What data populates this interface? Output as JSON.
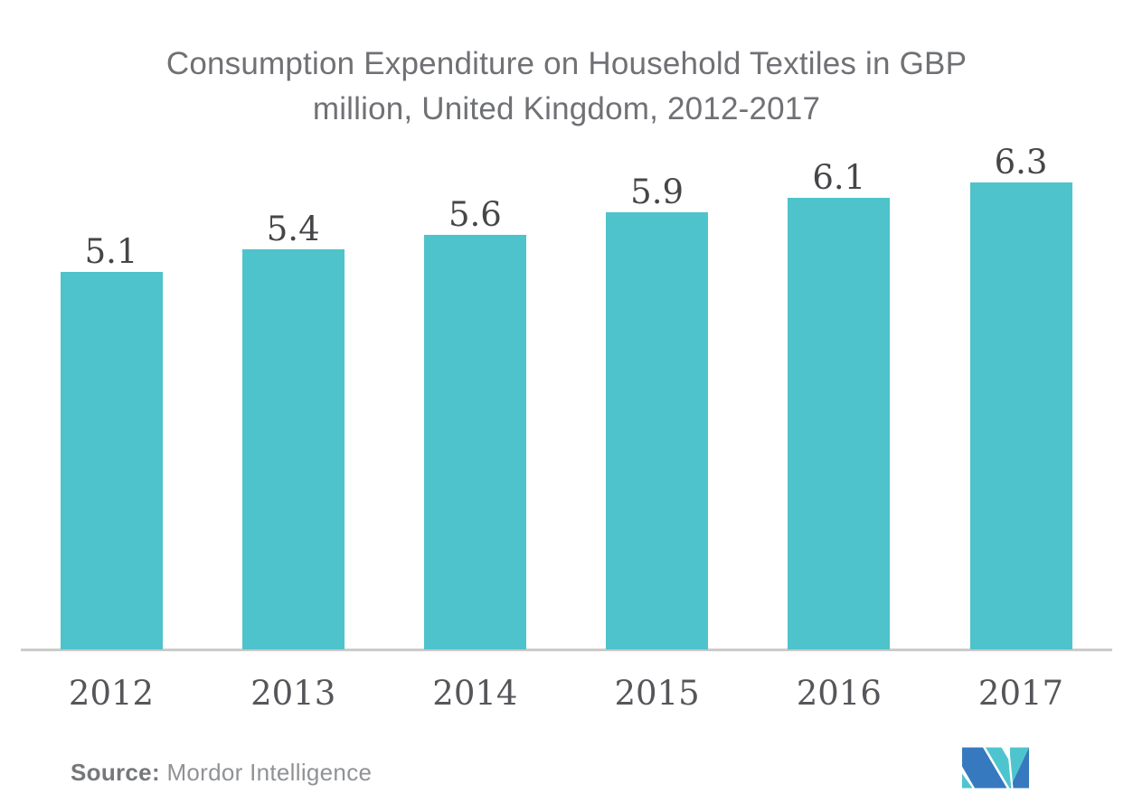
{
  "title": {
    "line1": "Consumption Expenditure on Household Textiles in GBP",
    "line2": "million, United Kingdom, 2012-2017"
  },
  "source": {
    "label": "Source:",
    "name": "Mordor Intelligence"
  },
  "colors": {
    "bar": "#4fc3cb",
    "axis_line": "#cbcbc9",
    "title_text": "#707175",
    "value_text": "#464649",
    "year_text": "#56565a",
    "logo_blue": "#3779be",
    "logo_teal": "#4ec5ce"
  },
  "chart_data": {
    "type": "bar",
    "title": "Consumption Expenditure on Household Textiles in GBP million, United Kingdom, 2012-2017",
    "categories": [
      "2012",
      "2013",
      "2014",
      "2015",
      "2016",
      "2017"
    ],
    "values": [
      5.1,
      5.4,
      5.6,
      5.9,
      6.1,
      6.3
    ],
    "unit": "GBP million",
    "xlabel": "",
    "ylabel": "",
    "ylim": [
      0,
      6.5
    ],
    "bar_color": "#4fc3cb",
    "value_labels_shown": true,
    "gridlines": false,
    "legend": "none",
    "y_axis_shown": false
  }
}
